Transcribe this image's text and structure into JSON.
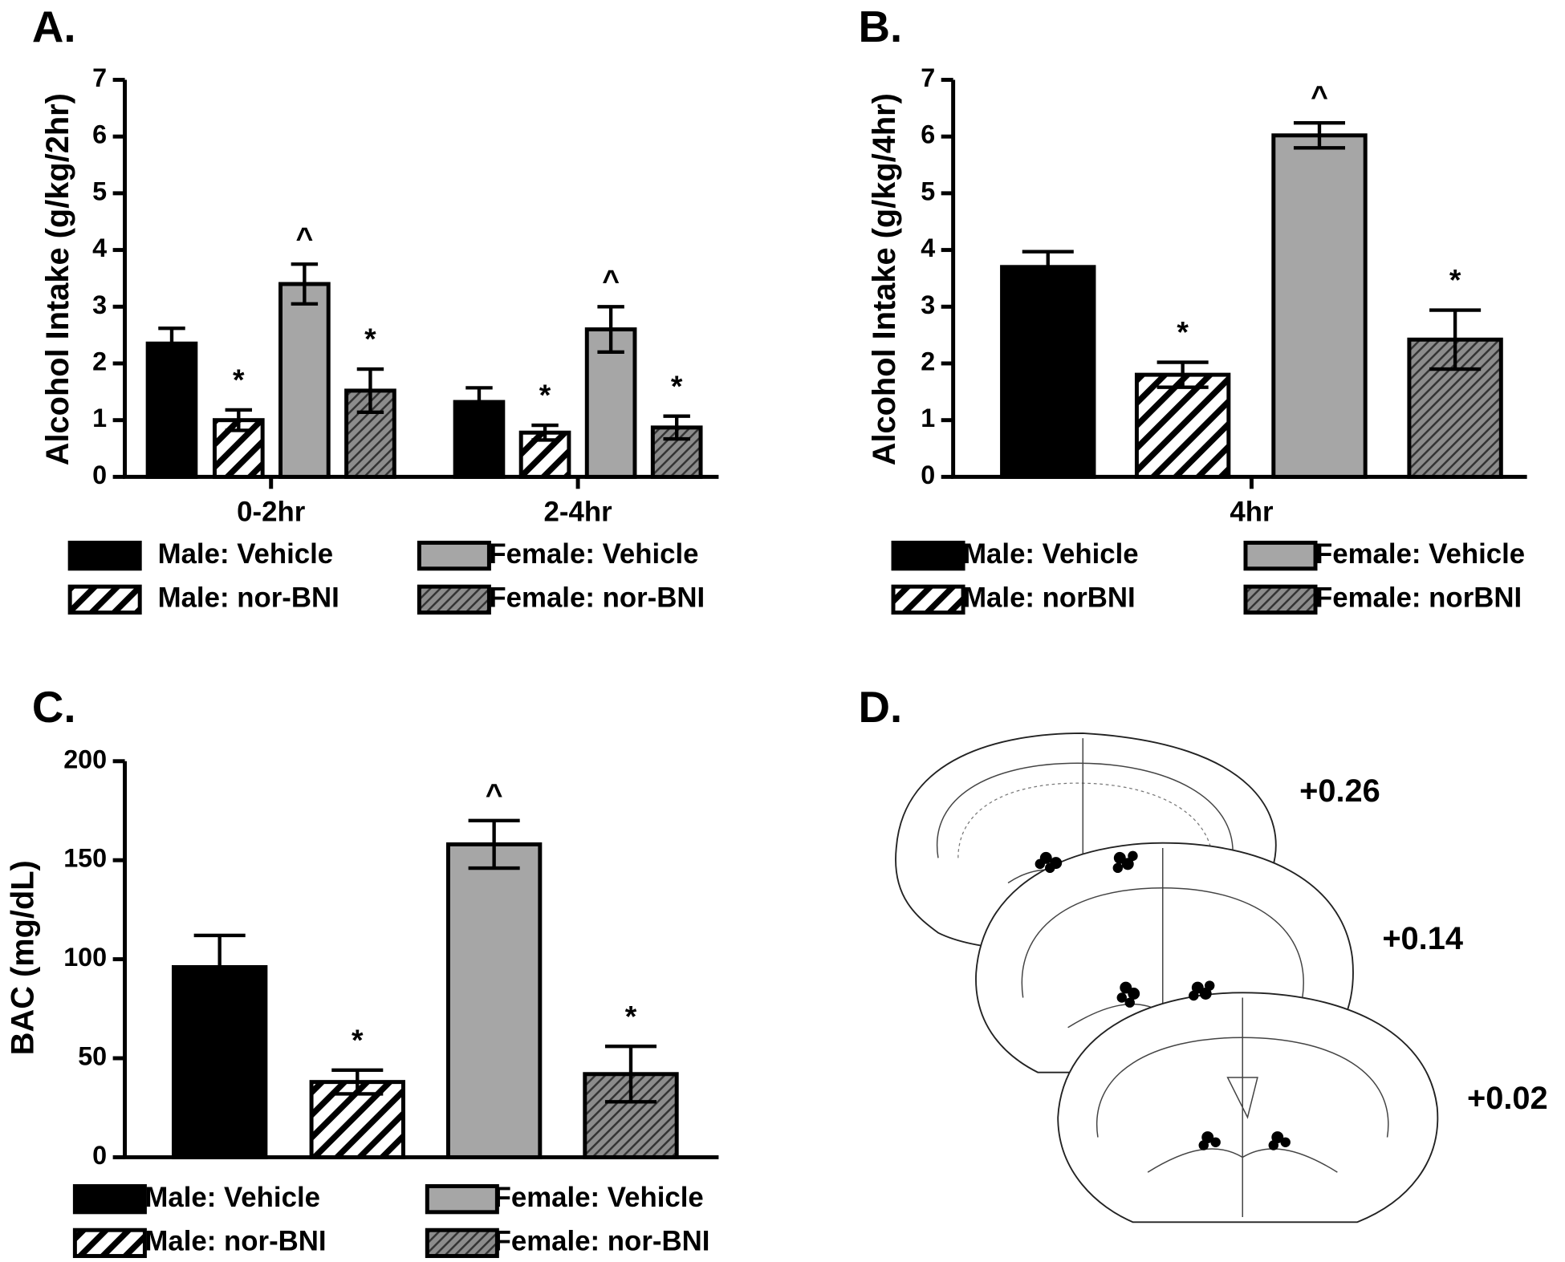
{
  "chart_data": [
    {
      "type": "bar",
      "panel": "A.",
      "y_label": "Alcohol Intake (g/kg/2hr)",
      "categories": [
        "0-2hr",
        "2-4hr"
      ],
      "series": [
        {
          "name": "Male: Vehicle",
          "color": "#000000",
          "hatch": false,
          "values": [
            2.35,
            1.32
          ],
          "errors": [
            0.27,
            0.25
          ],
          "annotations": [
            null,
            null
          ]
        },
        {
          "name": "Male: nor-BNI",
          "color": "#ffffff",
          "hatch": true,
          "values": [
            1.0,
            0.78
          ],
          "errors": [
            0.18,
            0.13
          ],
          "annotations": [
            "*",
            "*"
          ]
        },
        {
          "name": "Female: Vehicle",
          "color": "#a6a6a6",
          "hatch": false,
          "values": [
            3.4,
            2.6
          ],
          "errors": [
            0.35,
            0.4
          ],
          "annotations": [
            "^",
            "^"
          ]
        },
        {
          "name": "Female: nor-BNI",
          "color": "#8c8c8c",
          "hatch": true,
          "values": [
            1.52,
            0.87
          ],
          "errors": [
            0.38,
            0.2
          ],
          "annotations": [
            "*",
            "*"
          ]
        }
      ],
      "ylim": [
        0,
        7
      ],
      "yticks": [
        0,
        1,
        2,
        3,
        4,
        5,
        6,
        7
      ]
    },
    {
      "type": "bar",
      "panel": "B.",
      "y_label": "Alcohol Intake (g/kg/4hr)",
      "categories": [
        "4hr"
      ],
      "series": [
        {
          "name": "Male: Vehicle",
          "color": "#000000",
          "hatch": false,
          "values": [
            3.7
          ],
          "errors": [
            0.27
          ],
          "annotations": [
            null
          ]
        },
        {
          "name": "Male: norBNI",
          "color": "#ffffff",
          "hatch": true,
          "values": [
            1.8
          ],
          "errors": [
            0.22
          ],
          "annotations": [
            "*"
          ]
        },
        {
          "name": "Female: Vehicle",
          "color": "#a6a6a6",
          "hatch": false,
          "values": [
            6.02
          ],
          "errors": [
            0.22
          ],
          "annotations": [
            "^"
          ]
        },
        {
          "name": "Female: norBNI",
          "color": "#8c8c8c",
          "hatch": true,
          "values": [
            2.42
          ],
          "errors": [
            0.52
          ],
          "annotations": [
            "*"
          ]
        }
      ],
      "ylim": [
        0,
        7
      ],
      "yticks": [
        0,
        1,
        2,
        3,
        4,
        5,
        6,
        7
      ]
    },
    {
      "type": "bar",
      "panel": "C.",
      "y_label": "BAC (mg/dL)",
      "categories": [
        null
      ],
      "series": [
        {
          "name": "Male: Vehicle",
          "color": "#000000",
          "hatch": false,
          "values": [
            96
          ],
          "errors": [
            16
          ],
          "annotations": [
            null
          ]
        },
        {
          "name": "Male: nor-BNI",
          "color": "#ffffff",
          "hatch": true,
          "values": [
            38
          ],
          "errors": [
            6
          ],
          "annotations": [
            "*"
          ]
        },
        {
          "name": "Female: Vehicle",
          "color": "#a6a6a6",
          "hatch": false,
          "values": [
            158
          ],
          "errors": [
            12
          ],
          "annotations": [
            "^"
          ]
        },
        {
          "name": "Female: nor-BNI",
          "color": "#8c8c8c",
          "hatch": true,
          "values": [
            42
          ],
          "errors": [
            14
          ],
          "annotations": [
            "*"
          ]
        }
      ],
      "ylim": [
        0,
        200
      ],
      "yticks": [
        0,
        50,
        100,
        150,
        200
      ]
    }
  ],
  "diagram": {
    "panel": "D.",
    "sections": [
      "+0.26",
      "+0.14",
      "+0.02"
    ]
  }
}
